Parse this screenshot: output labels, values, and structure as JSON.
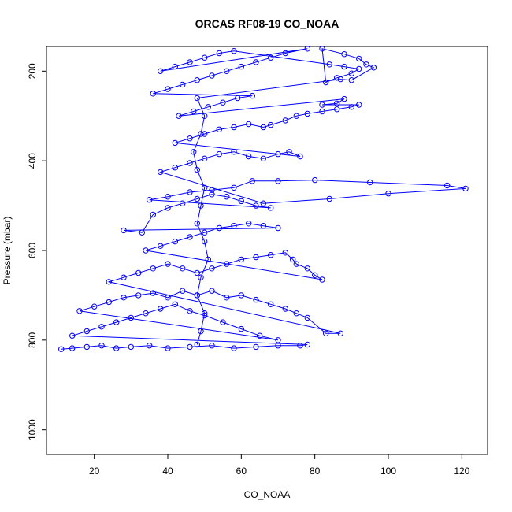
{
  "chart_data": {
    "type": "scatter",
    "title": "ORCAS RF08-19 CO_NOAA",
    "xlabel": "CO_NOAA",
    "ylabel": "Pressure (mbar)",
    "xlim": [
      7,
      127
    ],
    "ylim": [
      1055,
      145
    ],
    "y_reversed": true,
    "xticks": [
      20,
      40,
      60,
      80,
      100,
      120
    ],
    "yticks": [
      200,
      400,
      600,
      800,
      1000
    ],
    "grid": false,
    "marker": "open-circle",
    "connected": true,
    "color": "#0000ff",
    "series": [
      {
        "points": [
          [
            11,
            820
          ],
          [
            14,
            818
          ],
          [
            18,
            815
          ],
          [
            22,
            812
          ],
          [
            26,
            818
          ],
          [
            30,
            815
          ],
          [
            35,
            812
          ],
          [
            40,
            818
          ],
          [
            46,
            815
          ],
          [
            52,
            812
          ],
          [
            58,
            818
          ],
          [
            64,
            815
          ],
          [
            70,
            812
          ],
          [
            76,
            812
          ],
          [
            78,
            810
          ],
          [
            14,
            790
          ],
          [
            18,
            780
          ],
          [
            22,
            770
          ],
          [
            26,
            760
          ],
          [
            30,
            750
          ],
          [
            34,
            740
          ],
          [
            38,
            730
          ],
          [
            42,
            720
          ],
          [
            46,
            735
          ],
          [
            50,
            745
          ],
          [
            55,
            760
          ],
          [
            60,
            775
          ],
          [
            65,
            790
          ],
          [
            70,
            800
          ],
          [
            16,
            735
          ],
          [
            20,
            725
          ],
          [
            24,
            715
          ],
          [
            28,
            705
          ],
          [
            32,
            700
          ],
          [
            36,
            695
          ],
          [
            40,
            705
          ],
          [
            44,
            690
          ],
          [
            48,
            700
          ],
          [
            52,
            690
          ],
          [
            56,
            705
          ],
          [
            60,
            700
          ],
          [
            64,
            710
          ],
          [
            68,
            720
          ],
          [
            72,
            730
          ],
          [
            75,
            740
          ],
          [
            78,
            750
          ],
          [
            83,
            785
          ],
          [
            87,
            785
          ],
          [
            24,
            670
          ],
          [
            28,
            660
          ],
          [
            32,
            650
          ],
          [
            36,
            640
          ],
          [
            40,
            630
          ],
          [
            44,
            640
          ],
          [
            48,
            650
          ],
          [
            52,
            640
          ],
          [
            56,
            630
          ],
          [
            60,
            620
          ],
          [
            64,
            615
          ],
          [
            68,
            610
          ],
          [
            72,
            605
          ],
          [
            74,
            620
          ],
          [
            75,
            630
          ],
          [
            78,
            640
          ],
          [
            80,
            655
          ],
          [
            82,
            665
          ],
          [
            34,
            600
          ],
          [
            38,
            590
          ],
          [
            42,
            580
          ],
          [
            46,
            570
          ],
          [
            50,
            560
          ],
          [
            54,
            550
          ],
          [
            58,
            545
          ],
          [
            62,
            540
          ],
          [
            66,
            545
          ],
          [
            70,
            550
          ],
          [
            28,
            555
          ],
          [
            33,
            560
          ],
          [
            36,
            520
          ],
          [
            40,
            505
          ],
          [
            44,
            495
          ],
          [
            48,
            485
          ],
          [
            52,
            475
          ],
          [
            56,
            480
          ],
          [
            60,
            490
          ],
          [
            64,
            500
          ],
          [
            68,
            505
          ],
          [
            35,
            487
          ],
          [
            40,
            480
          ],
          [
            46,
            470
          ],
          [
            52,
            465
          ],
          [
            58,
            460
          ],
          [
            63,
            445
          ],
          [
            70,
            445
          ],
          [
            80,
            443
          ],
          [
            95,
            448
          ],
          [
            116,
            455
          ],
          [
            121,
            462
          ],
          [
            100,
            473
          ],
          [
            84,
            485
          ],
          [
            66,
            495
          ],
          [
            38,
            425
          ],
          [
            42,
            415
          ],
          [
            46,
            405
          ],
          [
            50,
            395
          ],
          [
            54,
            385
          ],
          [
            58,
            380
          ],
          [
            62,
            390
          ],
          [
            66,
            395
          ],
          [
            70,
            385
          ],
          [
            73,
            380
          ],
          [
            76,
            390
          ],
          [
            42,
            360
          ],
          [
            46,
            350
          ],
          [
            50,
            340
          ],
          [
            54,
            330
          ],
          [
            58,
            325
          ],
          [
            62,
            318
          ],
          [
            66,
            325
          ],
          [
            68,
            320
          ],
          [
            72,
            310
          ],
          [
            75,
            300
          ],
          [
            78,
            295
          ],
          [
            82,
            290
          ],
          [
            86,
            285
          ],
          [
            90,
            280
          ],
          [
            92,
            275
          ],
          [
            82,
            275
          ],
          [
            86,
            272
          ],
          [
            88,
            262
          ],
          [
            43,
            300
          ],
          [
            47,
            290
          ],
          [
            51,
            280
          ],
          [
            55,
            270
          ],
          [
            59,
            260
          ],
          [
            63,
            255
          ],
          [
            36,
            250
          ],
          [
            40,
            240
          ],
          [
            44,
            230
          ],
          [
            48,
            220
          ],
          [
            52,
            210
          ],
          [
            56,
            200
          ],
          [
            60,
            190
          ],
          [
            64,
            180
          ],
          [
            68,
            170
          ],
          [
            72,
            160
          ],
          [
            78,
            150
          ],
          [
            38,
            200
          ],
          [
            42,
            190
          ],
          [
            46,
            180
          ],
          [
            50,
            170
          ],
          [
            54,
            160
          ],
          [
            58,
            155
          ],
          [
            84,
            185
          ],
          [
            88,
            190
          ],
          [
            92,
            195
          ],
          [
            90,
            205
          ],
          [
            86,
            215
          ],
          [
            83,
            225
          ],
          [
            82,
            150
          ],
          [
            88,
            162
          ],
          [
            92,
            172
          ],
          [
            94,
            185
          ],
          [
            96,
            192
          ],
          [
            90,
            220
          ],
          [
            87,
            218
          ],
          [
            48,
            260
          ],
          [
            50,
            300
          ],
          [
            49,
            340
          ],
          [
            47,
            380
          ],
          [
            48,
            420
          ],
          [
            50,
            460
          ],
          [
            49,
            500
          ],
          [
            48,
            540
          ],
          [
            50,
            580
          ],
          [
            51,
            620
          ],
          [
            49,
            660
          ],
          [
            48,
            700
          ],
          [
            50,
            740
          ],
          [
            49,
            780
          ],
          [
            48,
            810
          ]
        ]
      }
    ]
  }
}
